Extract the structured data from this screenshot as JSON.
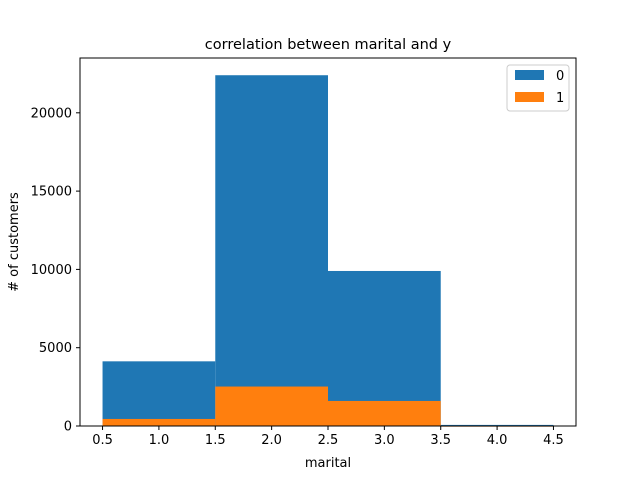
{
  "chart_data": {
    "type": "bar",
    "title": "correlation between marital and y",
    "xlabel": "marital",
    "ylabel": "# of customers",
    "xlim": [
      0.3,
      4.7
    ],
    "ylim": [
      0,
      23500
    ],
    "xticks": [
      0.5,
      1.0,
      1.5,
      2.0,
      2.5,
      3.0,
      3.5,
      4.0,
      4.5
    ],
    "xtick_labels": [
      "0.5",
      "1.0",
      "1.5",
      "2.0",
      "2.5",
      "3.0",
      "3.5",
      "4.0",
      "4.5"
    ],
    "yticks": [
      0,
      5000,
      10000,
      15000,
      20000
    ],
    "ytick_labels": [
      "0",
      "5000",
      "10000",
      "15000",
      "20000"
    ],
    "bin_edges": [
      0.5,
      1.5,
      2.5,
      3.5,
      4.5
    ],
    "grid": false,
    "legend_position": "top-right",
    "series": [
      {
        "name": "0",
        "color": "#1f77b4",
        "values": [
          4130,
          22400,
          9900,
          70
        ]
      },
      {
        "name": "1",
        "color": "#ff7f0e",
        "values": [
          450,
          2520,
          1600,
          10
        ]
      }
    ]
  }
}
